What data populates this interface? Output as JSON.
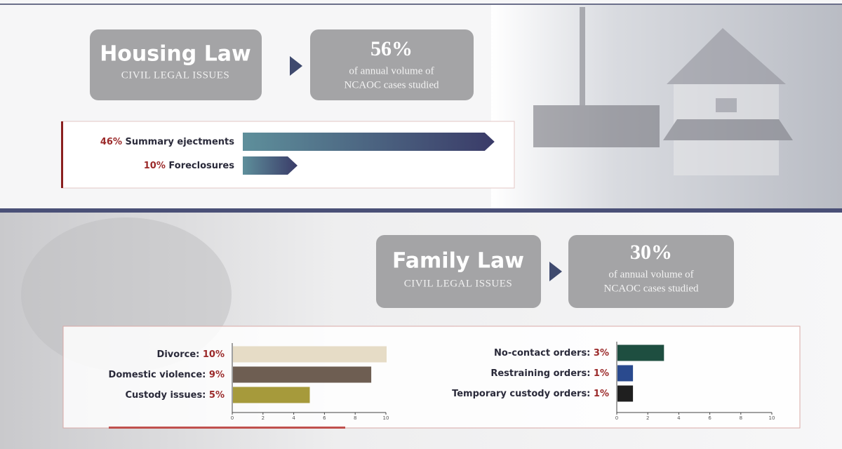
{
  "housing": {
    "title": "Housing Law",
    "subtitle": "CIVIL LEGAL ISSUES",
    "share": "56%",
    "share_line1": "of annual volume of",
    "share_line2": "NCAOC cases studied"
  },
  "family": {
    "title": "Family Law",
    "subtitle": "CIVIL LEGAL ISSUES",
    "share": "30%",
    "share_line1": "of annual volume of",
    "share_line2": "NCAOC cases studied"
  },
  "chart_data": [
    {
      "type": "arrow-bar",
      "categories": [
        "Summary ejectments",
        "Foreclosures"
      ],
      "values": [
        46,
        10
      ],
      "value_labels": [
        "46%",
        "10%"
      ],
      "colors": [
        "#5e8f9b",
        "#3a3b68"
      ]
    },
    {
      "type": "bar",
      "categories": [
        "Divorce:",
        "Domestic violence:",
        "Custody issues:"
      ],
      "values": [
        10,
        9,
        5
      ],
      "value_labels": [
        "10%",
        "9%",
        "5%"
      ],
      "colors": [
        "#e6dcc6",
        "#6e5e52",
        "#a69a3b"
      ],
      "xlim": [
        0,
        10
      ],
      "xticks": [
        0,
        2,
        4,
        6,
        8,
        10
      ]
    },
    {
      "type": "bar",
      "categories": [
        "No-contact orders:",
        "Restraining orders:",
        "Temporary custody orders:"
      ],
      "values": [
        3,
        1,
        1
      ],
      "value_labels": [
        "3%",
        "1%",
        "1%"
      ],
      "colors": [
        "#1e4e40",
        "#2a4a8e",
        "#1f1f1f"
      ],
      "xlim": [
        0,
        10
      ],
      "xticks": [
        0,
        2,
        4,
        6,
        8,
        10
      ]
    }
  ]
}
